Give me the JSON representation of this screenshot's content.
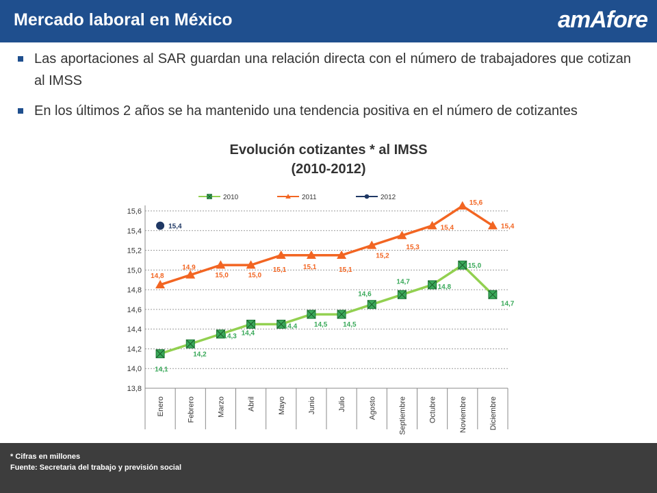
{
  "header": {
    "title": "Mercado laboral en México",
    "logo": "amAfore"
  },
  "bullets": [
    "Las aportaciones al SAR guardan una relación directa con el número de trabajadores que cotizan al IMSS",
    "En los últimos 2 años se ha mantenido una tendencia positiva en el número de cotizantes"
  ],
  "chart_data": {
    "type": "line",
    "title": "Evolución cotizantes * al IMSS",
    "subtitle": "(2010-2012)",
    "categories": [
      "Enero",
      "Febrero",
      "Marzo",
      "Abril",
      "Mayo",
      "Junio",
      "Julio",
      "Agosto",
      "Septiembre",
      "Octubre",
      "Noviembre",
      "Diciembre"
    ],
    "ylim": [
      13.8,
      15.6
    ],
    "yticks": [
      "13,8",
      "14,0",
      "14,2",
      "14,4",
      "14,6",
      "14,8",
      "15,0",
      "15,2",
      "15,4",
      "15,6"
    ],
    "grid": true,
    "legend_position": "top",
    "series": [
      {
        "name": "2010",
        "color": "#92d050",
        "marker": "square-x",
        "values": [
          14.15,
          14.25,
          14.35,
          14.45,
          14.45,
          14.55,
          14.55,
          14.65,
          14.75,
          14.85,
          15.05,
          14.75
        ],
        "labels": [
          "14,1",
          "14,2",
          "14,3",
          "14,4",
          "14,4",
          "14,5",
          "14,5",
          "14,6",
          "14,7",
          "14,8",
          "15,0",
          "14,7"
        ]
      },
      {
        "name": "2011",
        "color": "#f26522",
        "marker": "triangle",
        "values": [
          14.85,
          14.95,
          15.05,
          15.05,
          15.15,
          15.15,
          15.15,
          15.25,
          15.35,
          15.45,
          15.65,
          15.45
        ],
        "labels": [
          "14,8",
          "14,9",
          "15,0",
          "15,0",
          "15,1",
          "15,1",
          "15,1",
          "15,2",
          "15,3",
          "15,4",
          "15,6",
          "15,4"
        ]
      },
      {
        "name": "2012",
        "color": "#1f3864",
        "marker": "circle",
        "values": [
          15.45,
          null,
          null,
          null,
          null,
          null,
          null,
          null,
          null,
          null,
          null,
          null
        ],
        "labels": [
          "15,4",
          "",
          "",
          "",
          "",
          "",
          "",
          "",
          "",
          "",
          "",
          ""
        ]
      }
    ]
  },
  "footer": {
    "note": "* Cifras en millones",
    "source": "Fuente:  Secretaria del trabajo y previsión social"
  }
}
